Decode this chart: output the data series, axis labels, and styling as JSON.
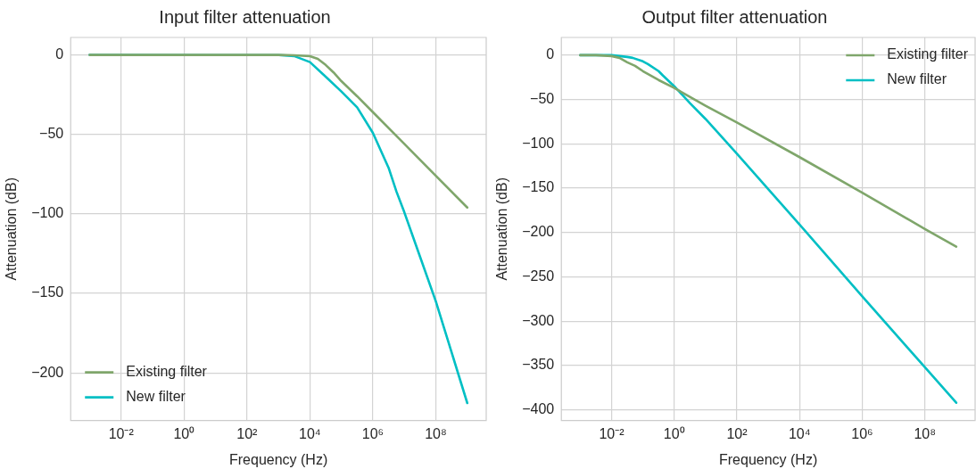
{
  "chart_data": [
    {
      "type": "line",
      "title": "Input filter attenuation",
      "xlabel": "Frequency (Hz)",
      "ylabel": "Attenuation (dB)",
      "log": "x",
      "grid": true,
      "legend": "bottom left",
      "marker": "none",
      "line_style": "solid",
      "xlim": [
        0.00025,
        4000000000
      ],
      "ylim": [
        -230,
        11
      ],
      "xticks": [
        {
          "value": 0.01,
          "label": "10⁻²"
        },
        {
          "value": 1,
          "label": "10⁰"
        },
        {
          "value": 100,
          "label": "10²"
        },
        {
          "value": 10000,
          "label": "10⁴"
        },
        {
          "value": 1000000,
          "label": "10⁶"
        },
        {
          "value": 100000000,
          "label": "10⁸"
        }
      ],
      "yticks": [
        {
          "value": 0,
          "label": "0"
        },
        {
          "value": -50,
          "label": "−50"
        },
        {
          "value": -100,
          "label": "−100"
        },
        {
          "value": -150,
          "label": "−150"
        },
        {
          "value": -200,
          "label": "−200"
        }
      ],
      "series": [
        {
          "name": "Existing filter",
          "color": "#7fa66b",
          "x": [
            0.001,
            1000,
            3162,
            10000,
            17783,
            31623,
            56234,
            100000,
            316228,
            1000000,
            10000000,
            100000000,
            1000000000
          ],
          "values": [
            0,
            0,
            -0.2,
            -0.8,
            -2.5,
            -6.3,
            -11,
            -16.5,
            -26,
            -36,
            -56,
            -76,
            -96
          ]
        },
        {
          "name": "New filter",
          "color": "#00bfc4",
          "x": [
            0.001,
            1000,
            3162,
            10000,
            31623,
            100000,
            316228,
            1000000,
            3162278,
            5623413,
            10000000,
            31622777,
            100000000,
            316227766,
            1000000000
          ],
          "values": [
            0,
            -0.1,
            -0.7,
            -4.5,
            -13.7,
            -23,
            -33,
            -49,
            -71,
            -86,
            -99,
            -127,
            -155,
            -187,
            -219
          ]
        }
      ]
    },
    {
      "type": "line",
      "title": "Output filter attenuation",
      "xlabel": "Frequency (Hz)",
      "ylabel": "Attenuation (dB)",
      "log": "x",
      "grid": true,
      "legend": "top right",
      "marker": "none",
      "line_style": "solid",
      "xlim": [
        0.00025,
        4000000000
      ],
      "ylim": [
        -412,
        20
      ],
      "xticks": [
        {
          "value": 0.01,
          "label": "10⁻²"
        },
        {
          "value": 1,
          "label": "10⁰"
        },
        {
          "value": 100,
          "label": "10²"
        },
        {
          "value": 10000,
          "label": "10⁴"
        },
        {
          "value": 1000000,
          "label": "10⁶"
        },
        {
          "value": 100000000,
          "label": "10⁸"
        }
      ],
      "yticks": [
        {
          "value": 0,
          "label": "0"
        },
        {
          "value": -50,
          "label": "−50"
        },
        {
          "value": -100,
          "label": "−100"
        },
        {
          "value": -150,
          "label": "−150"
        },
        {
          "value": -200,
          "label": "−200"
        },
        {
          "value": -250,
          "label": "−250"
        },
        {
          "value": -300,
          "label": "−300"
        },
        {
          "value": -350,
          "label": "−350"
        },
        {
          "value": -400,
          "label": "−400"
        }
      ],
      "series": [
        {
          "name": "Existing filter",
          "color": "#7fa66b",
          "x": [
            0.001,
            0.00316,
            0.01,
            0.0178,
            0.0316,
            0.0562,
            0.1,
            0.316,
            1,
            10,
            100,
            10000,
            1000000,
            100000000,
            1000000000
          ],
          "values": [
            0,
            0,
            -1,
            -3,
            -8,
            -12,
            -18,
            -28,
            -37,
            -57,
            -76,
            -115,
            -155,
            -196,
            -216
          ]
        },
        {
          "name": "New filter",
          "color": "#00bfc4",
          "x": [
            0.001,
            0.01,
            0.0316,
            0.0468,
            0.1,
            0.1445,
            0.316,
            0.4365,
            1,
            3.162,
            10,
            100,
            10000,
            1000000,
            100000000,
            1000000000
          ],
          "values": [
            0,
            0,
            -2,
            -3,
            -7,
            -10,
            -18,
            -23,
            -35,
            -54,
            -72,
            -111,
            -191,
            -272,
            -352,
            -392
          ]
        }
      ]
    }
  ]
}
